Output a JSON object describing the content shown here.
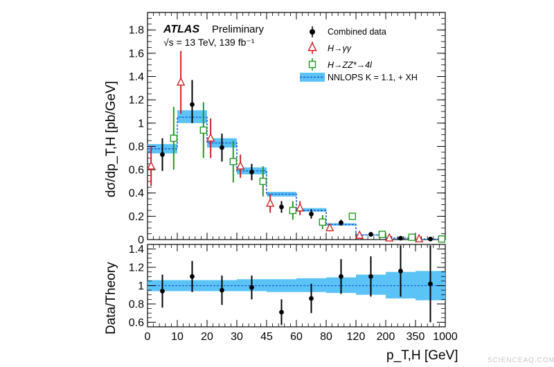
{
  "experiment": "ATLAS",
  "status": "Preliminary",
  "energy_lumi": "√s = 13 TeV, 139 fb⁻¹",
  "watermark": "SCIENCEAQ.COM",
  "colors": {
    "data": "#000000",
    "gamgam": "#cc2222",
    "zz4l": "#229922",
    "band": "#5bc3f5",
    "line": "#1f5fd6"
  },
  "chart_data": [
    {
      "type": "step-errorbar",
      "panel": "main",
      "ylabel": "dσ/dp_T,H [pb/GeV]",
      "ylim": [
        0,
        1.95
      ],
      "yticks": [
        0,
        0.2,
        0.4,
        0.6,
        0.8,
        1,
        1.2,
        1.4,
        1.6,
        1.8
      ],
      "bin_edges": [
        0,
        10,
        20,
        30,
        45,
        60,
        80,
        120,
        200,
        350,
        1000
      ],
      "xtick_labels": [
        "0",
        "10",
        "20",
        "30",
        "45",
        "60",
        "80",
        "120",
        "200",
        "350",
        "1000"
      ],
      "legend": {
        "placement": "top-right",
        "entries": [
          "Combined data",
          "H→γγ",
          "H→ZZ*→4l",
          "NNLOPS K = 1.1, + XH"
        ]
      },
      "series": [
        {
          "name": "Combined data",
          "marker": "filled-circle",
          "values": [
            0.73,
            1.16,
            0.79,
            0.58,
            0.28,
            0.22,
            0.145,
            0.045,
            0.012,
            0.005
          ],
          "err_low": [
            0.14,
            0.16,
            0.12,
            0.07,
            0.05,
            0.04,
            0.025,
            0.012,
            0.005,
            0.003
          ],
          "err_high": [
            0.14,
            0.21,
            0.12,
            0.07,
            0.05,
            0.04,
            0.025,
            0.012,
            0.005,
            0.003
          ]
        },
        {
          "name": "H→γγ",
          "marker": "open-triangle",
          "values": [
            0.63,
            1.35,
            0.87,
            0.63,
            0.31,
            0.27,
            0.1,
            0.035,
            0.012,
            0.005
          ],
          "err_low": [
            0.17,
            0.27,
            0.17,
            0.1,
            0.08,
            0.06,
            0.03,
            0.015,
            0.008,
            0.004
          ],
          "err_high": [
            0.17,
            0.27,
            0.17,
            0.1,
            0.08,
            0.06,
            0.03,
            0.015,
            0.008,
            0.004
          ]
        },
        {
          "name": "H→ZZ*→4l",
          "marker": "open-square",
          "values": [
            0.87,
            0.94,
            0.67,
            0.5,
            0.25,
            0.15,
            0.2,
            0.045,
            0.02,
            0.005
          ],
          "err_low": [
            0.27,
            0.24,
            0.18,
            0.13,
            0.08,
            0.06,
            0.03,
            0.015,
            0.008,
            0.004
          ],
          "err_high": [
            0.27,
            0.24,
            0.18,
            0.13,
            0.08,
            0.06,
            0.03,
            0.015,
            0.008,
            0.004
          ]
        }
      ],
      "theory": {
        "name": "NNLOPS K = 1.1, + XH",
        "values": [
          0.78,
          1.05,
          0.83,
          0.59,
          0.39,
          0.25,
          0.13,
          0.04,
          0.012,
          0.004
        ],
        "band_low": [
          0.74,
          1.0,
          0.79,
          0.56,
          0.37,
          0.24,
          0.12,
          0.035,
          0.009,
          0.002
        ],
        "band_high": [
          0.82,
          1.11,
          0.87,
          0.62,
          0.41,
          0.27,
          0.14,
          0.045,
          0.015,
          0.006
        ]
      }
    },
    {
      "type": "ratio-errorbar",
      "panel": "ratio",
      "ylabel": "Data/Theory",
      "xlabel": "p_T,H [GeV]",
      "ylim": [
        0.55,
        1.45
      ],
      "yticks": [
        0.6,
        0.8,
        1,
        1.2,
        1.4
      ],
      "values": [
        0.94,
        1.1,
        0.95,
        0.98,
        0.71,
        0.86,
        1.1,
        1.1,
        1.16,
        1.02
      ],
      "err_low": [
        0.18,
        0.17,
        0.16,
        0.13,
        0.14,
        0.16,
        0.19,
        0.22,
        0.28,
        0.42
      ],
      "err_high": [
        0.18,
        0.17,
        0.16,
        0.13,
        0.14,
        0.16,
        0.19,
        0.22,
        0.28,
        0.42
      ],
      "band_low": [
        0.94,
        0.94,
        0.94,
        0.94,
        0.93,
        0.93,
        0.92,
        0.9,
        0.86,
        0.84
      ],
      "band_high": [
        1.06,
        1.06,
        1.06,
        1.07,
        1.07,
        1.08,
        1.09,
        1.12,
        1.15,
        1.16
      ]
    }
  ],
  "legend_labels": {
    "data": "Combined data",
    "gamgam": "H→γγ",
    "zz4l": "H→ZZ*→4l",
    "theory": "NNLOPS K = 1.1, + XH"
  }
}
